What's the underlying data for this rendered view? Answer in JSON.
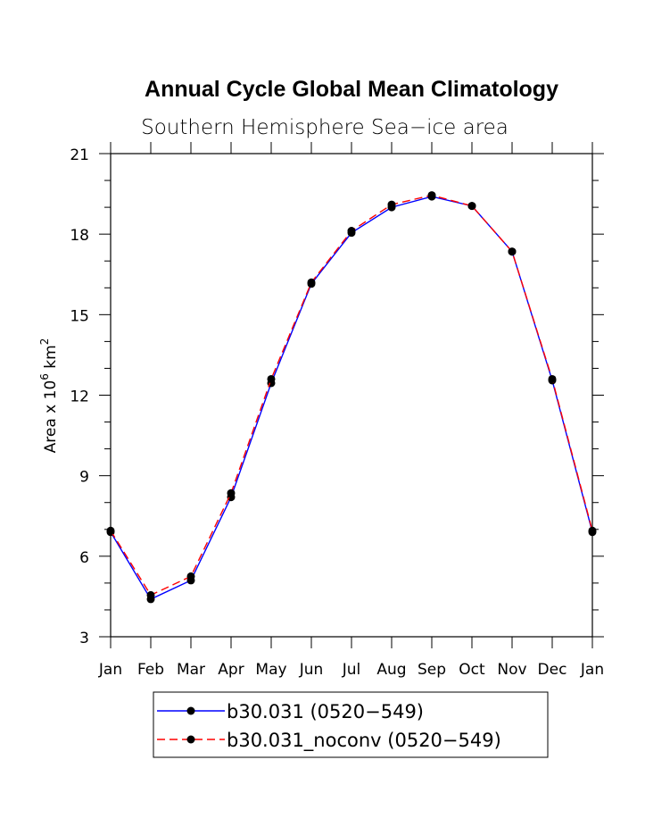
{
  "chart_data": {
    "type": "line",
    "title": "Annual Cycle Global Mean Climatology",
    "subtitle": "Southern Hemisphere Sea−ice area",
    "ylabel_main": "Area x 10",
    "ylabel_exp1": "6",
    "ylabel_unit": " km",
    "ylabel_exp2": "2",
    "xlabel": "",
    "categories": [
      "Jan",
      "Feb",
      "Mar",
      "Apr",
      "May",
      "Jun",
      "Jul",
      "Aug",
      "Sep",
      "Oct",
      "Nov",
      "Dec",
      "Jan"
    ],
    "ylim": [
      3,
      21
    ],
    "yticks": [
      3,
      6,
      9,
      12,
      15,
      18,
      21
    ],
    "yminor_step": 1,
    "series": [
      {
        "name": "b30.031 (0520−549)",
        "color": "#0000ff",
        "dash": "solid",
        "values": [
          6.9,
          4.4,
          5.1,
          8.2,
          12.45,
          16.15,
          18.05,
          19.0,
          19.4,
          19.05,
          17.35,
          12.55,
          6.9
        ]
      },
      {
        "name": "b30.031_noconv (0520−549)",
        "color": "#ff0000",
        "dash": "dashed",
        "values": [
          6.95,
          4.55,
          5.25,
          8.35,
          12.6,
          16.2,
          18.12,
          19.1,
          19.45,
          19.05,
          17.35,
          12.6,
          6.95
        ]
      }
    ],
    "grid": false,
    "legend_position": "bottom"
  }
}
